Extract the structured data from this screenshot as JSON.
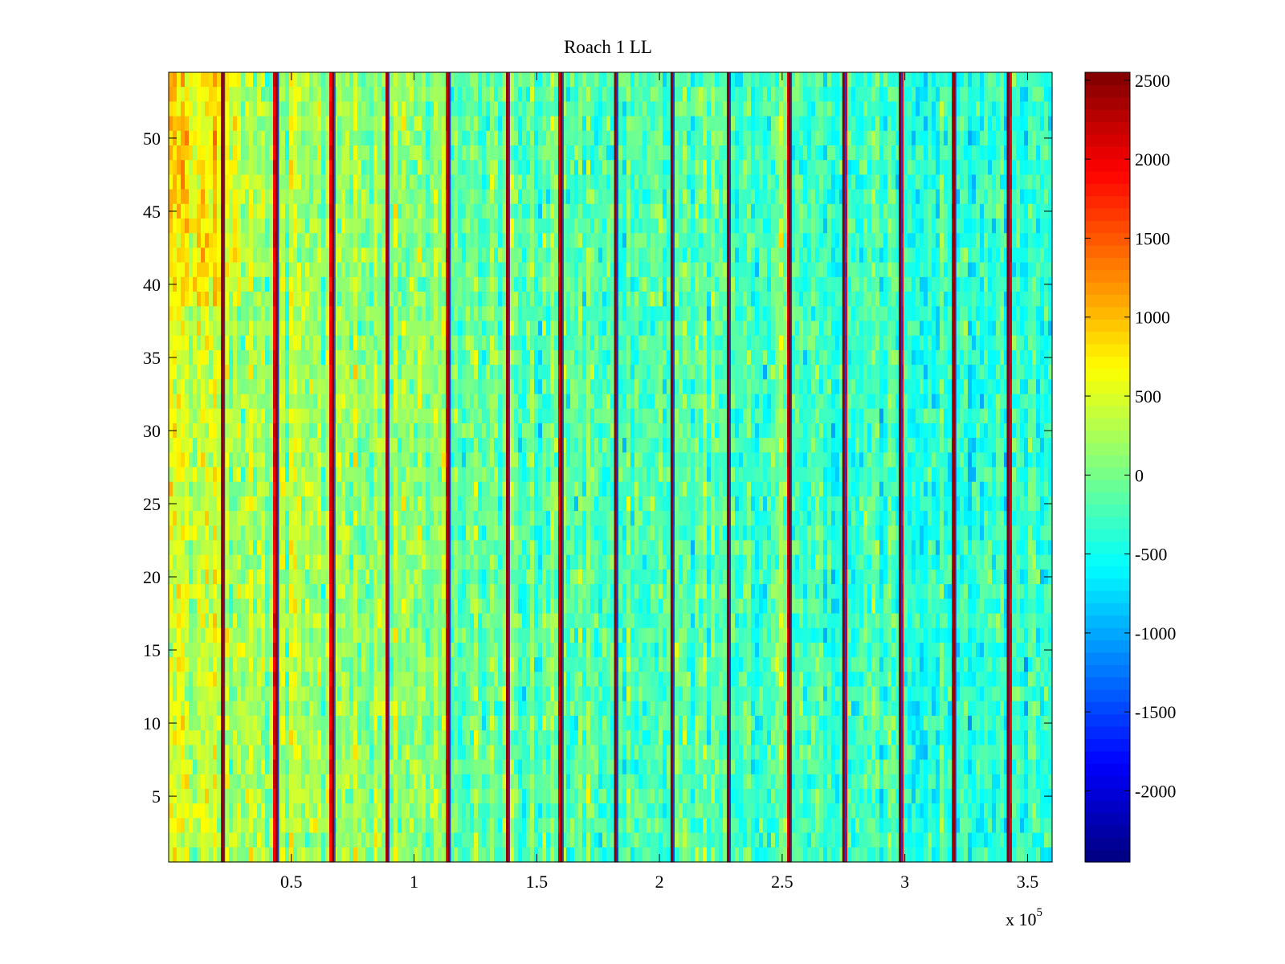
{
  "chart_data": {
    "type": "heatmap",
    "title": "Roach 1 LL",
    "xlabel": "",
    "ylabel": "",
    "colormap": "jet",
    "xlim": [
      0,
      360000
    ],
    "ylim": [
      0.5,
      54.5
    ],
    "x_ticks": [
      {
        "value": 50000,
        "label": "0.5"
      },
      {
        "value": 100000,
        "label": "1"
      },
      {
        "value": 150000,
        "label": "1.5"
      },
      {
        "value": 200000,
        "label": "2"
      },
      {
        "value": 250000,
        "label": "2.5"
      },
      {
        "value": 300000,
        "label": "3"
      },
      {
        "value": 350000,
        "label": "3.5"
      }
    ],
    "x_exponent_prefix": "x 10",
    "x_exponent_power": "5",
    "y_ticks": [
      {
        "value": 5,
        "label": "5"
      },
      {
        "value": 10,
        "label": "10"
      },
      {
        "value": 15,
        "label": "15"
      },
      {
        "value": 20,
        "label": "20"
      },
      {
        "value": 25,
        "label": "25"
      },
      {
        "value": 30,
        "label": "30"
      },
      {
        "value": 35,
        "label": "35"
      },
      {
        "value": 40,
        "label": "40"
      },
      {
        "value": 45,
        "label": "45"
      },
      {
        "value": 50,
        "label": "50"
      }
    ],
    "colorbar": {
      "clim": [
        -2450,
        2550
      ],
      "ticks": [
        {
          "value": 2500,
          "label": "2500"
        },
        {
          "value": 2000,
          "label": "2000"
        },
        {
          "value": 1500,
          "label": "1500"
        },
        {
          "value": 1000,
          "label": "1000"
        },
        {
          "value": 500,
          "label": "500"
        },
        {
          "value": 0,
          "label": "0"
        },
        {
          "value": -500,
          "label": "-500"
        },
        {
          "value": -1000,
          "label": "-1000"
        },
        {
          "value": -1500,
          "label": "-1500"
        },
        {
          "value": -2000,
          "label": "-2000"
        }
      ]
    },
    "num_rows": 54,
    "red_stripe_x": [
      22000,
      44000,
      67000,
      89000,
      114000,
      138000,
      160000,
      182000,
      205000,
      228000,
      253000,
      275000,
      298000,
      320000,
      342000
    ],
    "background_trend": {
      "x": [
        0,
        50000,
        100000,
        150000,
        200000,
        250000,
        300000,
        360000
      ],
      "value": [
        400,
        250,
        100,
        -100,
        -200,
        -150,
        -300,
        -350
      ]
    }
  }
}
